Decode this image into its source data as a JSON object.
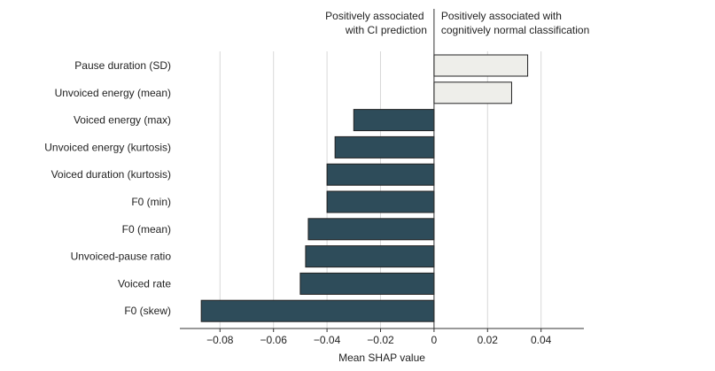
{
  "chart_data": {
    "type": "bar",
    "orientation": "horizontal",
    "title": "",
    "xlabel": "Mean SHAP value",
    "ylabel": "",
    "xlim": [
      -0.095,
      0.056
    ],
    "xticks": [
      -0.08,
      -0.06,
      -0.04,
      -0.02,
      0,
      0.02,
      0.04
    ],
    "xtick_labels": [
      "−0.08",
      "−0.06",
      "−0.04",
      "−0.02",
      "0",
      "0.02",
      "0.04"
    ],
    "grid": true,
    "categories": [
      "Pause duration (SD)",
      "Unvoiced energy (mean)",
      "Voiced energy (max)",
      "Unvoiced energy (kurtosis)",
      "Voiced duration (kurtosis)",
      "F0 (min)",
      "F0 (mean)",
      "Unvoiced-pause ratio",
      "Voiced rate",
      "F0 (skew)"
    ],
    "values": [
      0.035,
      0.029,
      -0.03,
      -0.037,
      -0.04,
      -0.04,
      -0.047,
      -0.048,
      -0.05,
      -0.087
    ],
    "colors": {
      "negative": "#2e4c5a",
      "positive": "#eeeeea",
      "stroke": "#222222"
    },
    "annotations": {
      "left": [
        "Positively associated",
        "with CI prediction"
      ],
      "right": [
        "Positively associated with",
        "cognitively normal classification"
      ]
    }
  }
}
